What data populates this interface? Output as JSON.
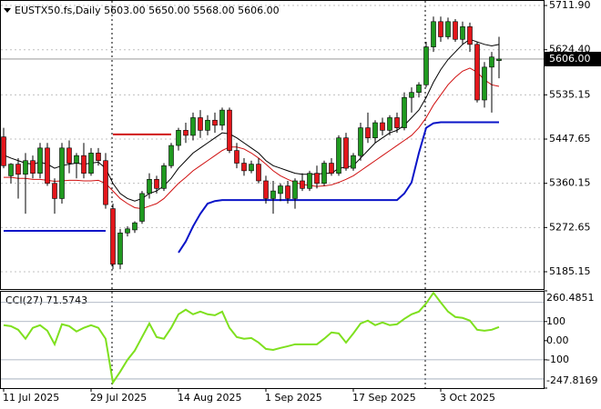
{
  "chart_data": [
    {
      "type": "candlestick",
      "title": "EUSTX50.fs,Daily  5603.00 5650.00 5568.00 5606.00",
      "categories": [
        "11 Jul 2025",
        null,
        null,
        null,
        null,
        null,
        null,
        null,
        null,
        null,
        null,
        null,
        "29 Jul 2025",
        null,
        null,
        null,
        null,
        null,
        null,
        null,
        null,
        null,
        null,
        null,
        "14 Aug 2025",
        null,
        null,
        null,
        null,
        null,
        null,
        null,
        null,
        null,
        null,
        null,
        "1 Sep 2025",
        null,
        null,
        null,
        null,
        null,
        null,
        null,
        null,
        null,
        null,
        null,
        "17 Sep 2025",
        null,
        null,
        null,
        null,
        null,
        null,
        null,
        null,
        null,
        null,
        null,
        "3 Oct 2025",
        null,
        null,
        null,
        null,
        null,
        null,
        null,
        null
      ],
      "open": [
        5452,
        5375,
        5398,
        5378,
        5405,
        5380,
        5430,
        5360,
        5330,
        5430,
        5400,
        5415,
        5380,
        5420,
        5405,
        5310,
        5200,
        5262,
        5268,
        5285,
        5340,
        5368,
        5350,
        5395,
        5435,
        5465,
        5455,
        5490,
        5465,
        5485,
        5475,
        5505,
        5425,
        5400,
        5385,
        5398,
        5365,
        5330,
        5340,
        5355,
        5330,
        5365,
        5350,
        5380,
        5360,
        5400,
        5380,
        5450,
        5390,
        5415,
        5470,
        5450,
        5480,
        5465,
        5490,
        5470,
        5530,
        5540,
        5555,
        5630,
        5680,
        5650,
        5680,
        5645,
        5670,
        5635,
        5525,
        5590,
        5603
      ],
      "high": [
        5470,
        5400,
        5410,
        5420,
        5415,
        5440,
        5440,
        5370,
        5440,
        5445,
        5420,
        5440,
        5430,
        5430,
        5420,
        5320,
        5270,
        5275,
        5285,
        5345,
        5380,
        5375,
        5400,
        5440,
        5470,
        5480,
        5500,
        5505,
        5495,
        5500,
        5510,
        5510,
        5440,
        5410,
        5405,
        5410,
        5375,
        5365,
        5360,
        5365,
        5370,
        5380,
        5385,
        5395,
        5405,
        5410,
        5455,
        5460,
        5420,
        5480,
        5500,
        5485,
        5490,
        5495,
        5500,
        5540,
        5550,
        5560,
        5640,
        5690,
        5690,
        5688,
        5685,
        5680,
        5678,
        5640,
        5600,
        5620,
        5650
      ],
      "low": [
        5390,
        5360,
        5330,
        5300,
        5370,
        5370,
        5355,
        5300,
        5320,
        5380,
        5370,
        5370,
        5375,
        5395,
        5310,
        5190,
        5190,
        5255,
        5262,
        5280,
        5330,
        5340,
        5345,
        5390,
        5425,
        5440,
        5445,
        5450,
        5455,
        5460,
        5465,
        5420,
        5390,
        5375,
        5380,
        5360,
        5320,
        5300,
        5325,
        5320,
        5310,
        5345,
        5345,
        5350,
        5355,
        5375,
        5375,
        5385,
        5385,
        5405,
        5440,
        5440,
        5455,
        5455,
        5460,
        5465,
        5500,
        5530,
        5550,
        5620,
        5640,
        5645,
        5640,
        5635,
        5620,
        5520,
        5510,
        5500,
        5568
      ],
      "close": [
        5395,
        5398,
        5378,
        5405,
        5380,
        5430,
        5360,
        5330,
        5430,
        5400,
        5415,
        5380,
        5420,
        5405,
        5318,
        5200,
        5262,
        5270,
        5282,
        5340,
        5368,
        5350,
        5395,
        5435,
        5465,
        5455,
        5490,
        5465,
        5485,
        5475,
        5505,
        5425,
        5400,
        5385,
        5398,
        5365,
        5330,
        5345,
        5355,
        5330,
        5365,
        5350,
        5380,
        5360,
        5400,
        5380,
        5450,
        5390,
        5415,
        5470,
        5450,
        5480,
        5465,
        5490,
        5470,
        5530,
        5540,
        5555,
        5630,
        5680,
        5650,
        5680,
        5645,
        5670,
        5635,
        5525,
        5590,
        5610,
        5606
      ],
      "up_color": "#1f9a1f",
      "down_color": "#e3161b",
      "lines": [
        {
          "color": "#000000",
          "width": 1,
          "values": [
            5416,
            5410,
            5405,
            5400,
            5398,
            5402,
            5398,
            5390,
            5395,
            5398,
            5400,
            5398,
            5400,
            5402,
            5390,
            5360,
            5340,
            5330,
            5325,
            5330,
            5340,
            5345,
            5355,
            5370,
            5390,
            5405,
            5420,
            5430,
            5440,
            5450,
            5460,
            5458,
            5450,
            5440,
            5430,
            5420,
            5405,
            5395,
            5390,
            5385,
            5380,
            5378,
            5378,
            5378,
            5380,
            5380,
            5390,
            5392,
            5395,
            5410,
            5425,
            5440,
            5450,
            5460,
            5465,
            5475,
            5490,
            5505,
            5530,
            5560,
            5585,
            5605,
            5620,
            5635,
            5645,
            5640,
            5635,
            5632,
            5635
          ]
        },
        {
          "color": "#d01010",
          "width": 1,
          "values": [
            5372,
            5372,
            5370,
            5370,
            5368,
            5368,
            5366,
            5364,
            5365,
            5366,
            5366,
            5365,
            5365,
            5366,
            5360,
            5345,
            5330,
            5320,
            5312,
            5310,
            5315,
            5320,
            5330,
            5345,
            5360,
            5372,
            5385,
            5395,
            5405,
            5415,
            5425,
            5432,
            5432,
            5428,
            5420,
            5410,
            5398,
            5385,
            5375,
            5368,
            5362,
            5358,
            5356,
            5354,
            5355,
            5357,
            5362,
            5368,
            5375,
            5385,
            5395,
            5405,
            5415,
            5425,
            5435,
            5445,
            5455,
            5470,
            5490,
            5515,
            5535,
            5555,
            5570,
            5582,
            5588,
            5580,
            5565,
            5555,
            5552
          ]
        },
        {
          "color": "#0a14c8",
          "width": 2,
          "values": [
            5266,
            5266,
            5266,
            5266,
            5266,
            5266,
            5266,
            5266,
            5266,
            5266,
            5266,
            5266,
            5266,
            5266,
            5266,
            null,
            null,
            null,
            null,
            null,
            null,
            null,
            null,
            null,
            5223,
            5245,
            5275,
            5300,
            5320,
            5325,
            5327,
            5327,
            5327,
            5327,
            5327,
            5327,
            5327,
            5327,
            5327,
            5327,
            5327,
            5327,
            5327,
            5327,
            5327,
            5327,
            5327,
            5327,
            5327,
            5327,
            5327,
            5327,
            5327,
            5327,
            5327,
            5340,
            5362,
            5420,
            5470,
            5479,
            5481,
            5481,
            5481,
            5481,
            5481,
            5481,
            5481,
            5481,
            5481
          ]
        },
        {
          "color": "#d01010",
          "width": 2,
          "values": [
            null,
            null,
            null,
            null,
            null,
            null,
            null,
            null,
            null,
            null,
            null,
            null,
            null,
            null,
            null,
            5457,
            5457,
            5457,
            5457,
            5457,
            5457,
            5457,
            5457,
            5457,
            null,
            null,
            null,
            null,
            null,
            null,
            null,
            null,
            null,
            null,
            null,
            null,
            null,
            null,
            null,
            null,
            null,
            null,
            null,
            null,
            null,
            null,
            null,
            null,
            null,
            null,
            null,
            null,
            null,
            null,
            null,
            null,
            null,
            null,
            null,
            null,
            null,
            null,
            null,
            null,
            null,
            null,
            null,
            null,
            null
          ]
        }
      ],
      "ylim": [
        5151,
        5721
      ],
      "yticks": [
        {
          "value": 5711.9,
          "label": "5711.90"
        },
        {
          "value": 5624.4,
          "label": "5624.40"
        },
        {
          "value": 5535.15,
          "label": "5535.15"
        },
        {
          "value": 5447.65,
          "label": "5447.65"
        },
        {
          "value": 5360.15,
          "label": "5360.15"
        },
        {
          "value": 5272.65,
          "label": "5272.65"
        },
        {
          "value": 5185.15,
          "label": "5185.15"
        }
      ],
      "last_price": {
        "value": 5606,
        "label": "5606.00"
      },
      "grid": true
    },
    {
      "type": "line",
      "title": "CCI(27) 71.5743",
      "color": "#7ee01e",
      "values": [
        81,
        76,
        57,
        10,
        67,
        81,
        52,
        -19,
        86,
        76,
        48,
        67,
        81,
        67,
        10,
        -219,
        -162,
        -100,
        -52,
        19,
        90,
        19,
        10,
        67,
        138,
        162,
        138,
        152,
        138,
        133,
        152,
        67,
        19,
        10,
        14,
        -10,
        -43,
        -48,
        -38,
        -29,
        -19,
        -19,
        -19,
        -19,
        10,
        43,
        38,
        -10,
        38,
        90,
        105,
        81,
        95,
        81,
        86,
        114,
        138,
        152,
        195,
        250,
        200,
        152,
        124,
        119,
        105,
        57,
        52,
        57,
        71.5743
      ],
      "ylim": [
        -247.8169,
        260.4851
      ],
      "yticks": [
        260.4851,
        100,
        {
          "value": 0,
          "label": "0.00"
        },
        -100,
        -247.8169
      ],
      "levels": [
        200,
        100,
        -100,
        -200
      ]
    }
  ]
}
